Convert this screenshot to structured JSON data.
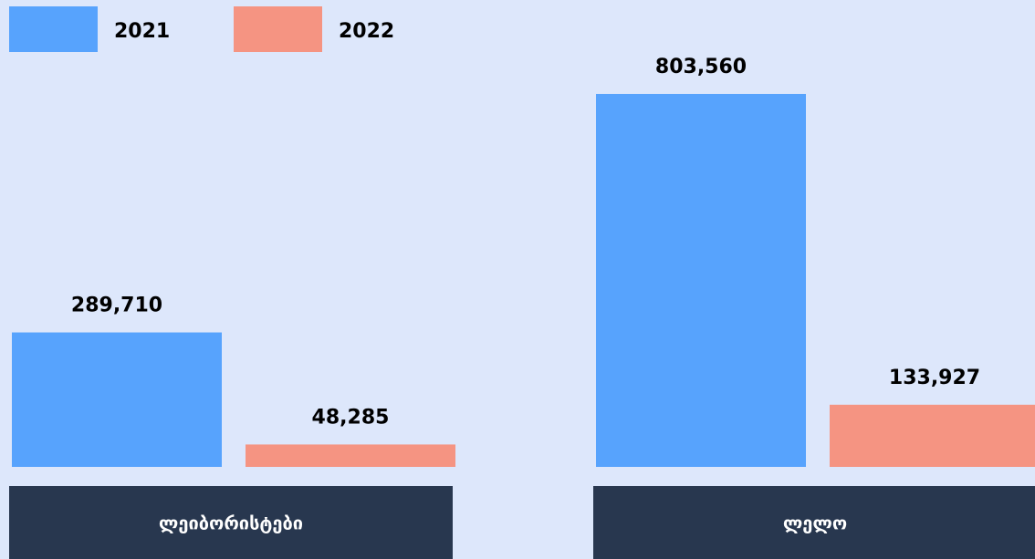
{
  "chart_data": {
    "type": "bar",
    "categories": [
      "ლეიბორისტები",
      "ლელო"
    ],
    "series": [
      {
        "name": "2021",
        "color": "#57a3fd",
        "values": [
          289710,
          803560
        ],
        "value_labels": [
          "289,710",
          "803,560"
        ]
      },
      {
        "name": "2022",
        "color": "#f59482",
        "values": [
          48285,
          133927
        ],
        "value_labels": [
          "48,285",
          "133,927"
        ]
      }
    ]
  }
}
